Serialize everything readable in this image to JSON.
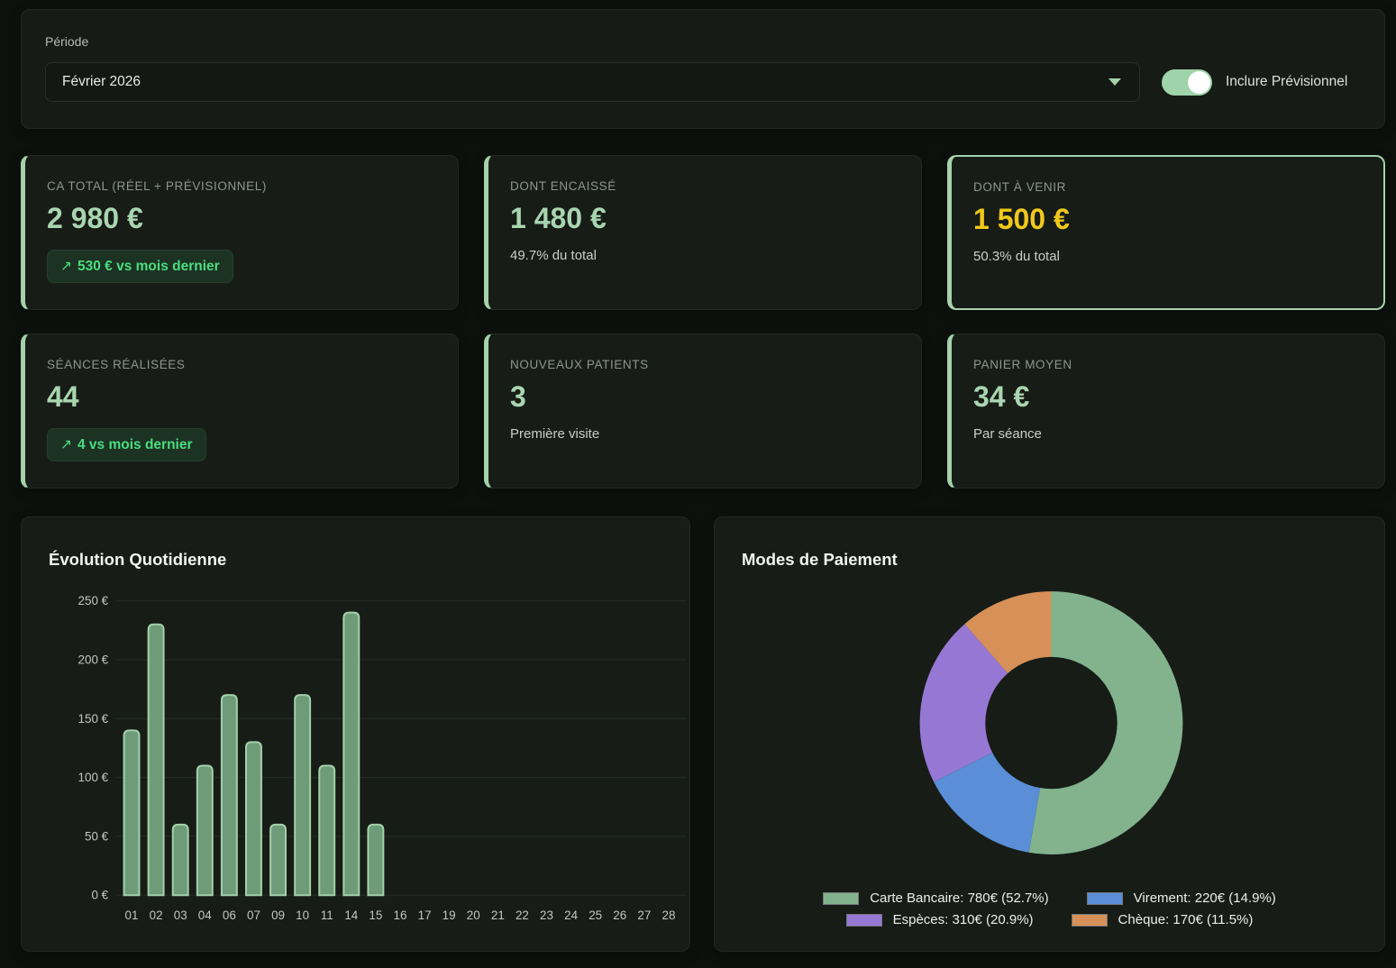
{
  "filter": {
    "label": "Période",
    "selected_period": "Février 2026",
    "toggle_label": "Inclure Prévisionnel",
    "toggle_on": true
  },
  "kpis": [
    {
      "title": "CA TOTAL (RÉEL + PRÉVISIONNEL)",
      "value": "2 980 €",
      "badge_icon": "↗",
      "badge_text": "530 € vs mois dernier"
    },
    {
      "title": "DONT ENCAISSÉ",
      "value": "1 480 €",
      "subtext": "49.7% du total"
    },
    {
      "title": "DONT À VENIR",
      "value": "1 500 €",
      "subtext": "50.3% du total"
    },
    {
      "title": "SÉANCES RÉALISÉES",
      "value": "44",
      "badge_icon": "↗",
      "badge_text": "4 vs mois dernier"
    },
    {
      "title": "NOUVEAUX PATIENTS",
      "value": "3",
      "subtext": "Première visite"
    },
    {
      "title": "PANIER MOYEN",
      "value": "34 €",
      "subtext": "Par séance"
    }
  ],
  "colors": {
    "accent_green": "#a5d2ab",
    "value_green": "#a9d5b0",
    "value_yellow": "#f0c81a",
    "badge_green": "#4ade80",
    "bar_fill": "#6e9b78",
    "bar_border": "#a3d0a9",
    "gridline": "#262b26"
  },
  "chart_data": [
    {
      "type": "bar",
      "title": "Évolution Quotidienne",
      "categories": [
        "01",
        "02",
        "03",
        "04",
        "06",
        "07",
        "09",
        "10",
        "11",
        "14",
        "15",
        "16",
        "17",
        "19",
        "20",
        "21",
        "22",
        "23",
        "24",
        "25",
        "26",
        "27",
        "28"
      ],
      "values": [
        140,
        230,
        60,
        110,
        170,
        130,
        60,
        170,
        110,
        240,
        60,
        0,
        0,
        0,
        0,
        0,
        0,
        0,
        0,
        0,
        0,
        0,
        0
      ],
      "xlabel": "",
      "ylabel": "",
      "ylim": [
        0,
        250
      ],
      "ytick_step": 50,
      "ytick_suffix": " €",
      "grid": true,
      "bar_color": "#6e9b78",
      "bar_border_color": "#a3d0a9"
    },
    {
      "type": "pie",
      "donut": true,
      "title": "Modes de Paiement",
      "labels": [
        "Carte Bancaire",
        "Virement",
        "Espèces",
        "Chèque"
      ],
      "values": [
        780,
        220,
        310,
        170
      ],
      "percents": [
        52.7,
        14.9,
        20.9,
        11.5
      ],
      "colors": [
        "#82b38d",
        "#5a8ed6",
        "#9678d4",
        "#d79158"
      ],
      "legend_position": "bottom",
      "legend": [
        "Carte Bancaire: 780€ (52.7%)",
        "Virement: 220€ (14.9%)",
        "Espèces: 310€ (20.9%)",
        "Chèque: 170€ (11.5%)"
      ]
    }
  ]
}
